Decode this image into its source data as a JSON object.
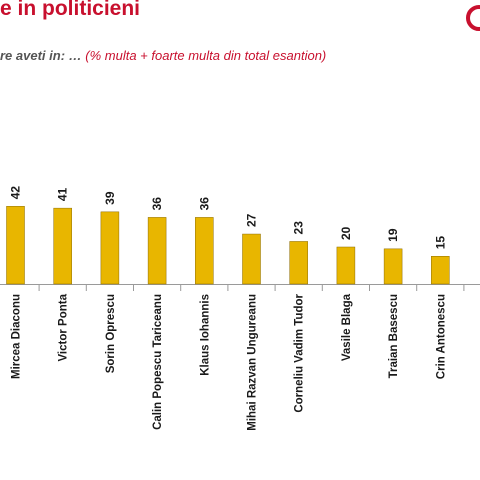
{
  "header": {
    "title": "e in politicieni",
    "question": "re aveti in: …",
    "note": "(% multa + foarte multa din  total esantion)"
  },
  "colors": {
    "brand_red": "#c8102e",
    "bar_fill": "#e8b600",
    "bar_edge": "#8a6a00"
  },
  "chart_data": {
    "type": "bar",
    "title": "e in politicieni",
    "ylabel": "% multa + foarte multa din total esantion",
    "categories": [
      "Mircea Diaconu",
      "Victor Ponta",
      "Sorin Oprescu",
      "Calin Popescu Tariceanu",
      "Klaus Iohannis",
      "Mihai Razvan Ungureanu",
      "Corneliu Vadim Tudor",
      "Vasile Blaga",
      "Traian Basescu",
      "Crin Antonescu"
    ],
    "values": [
      42,
      41,
      39,
      36,
      36,
      27,
      23,
      20,
      19,
      15
    ],
    "ylim": [
      0,
      60
    ],
    "grid": false,
    "legend": "none"
  }
}
